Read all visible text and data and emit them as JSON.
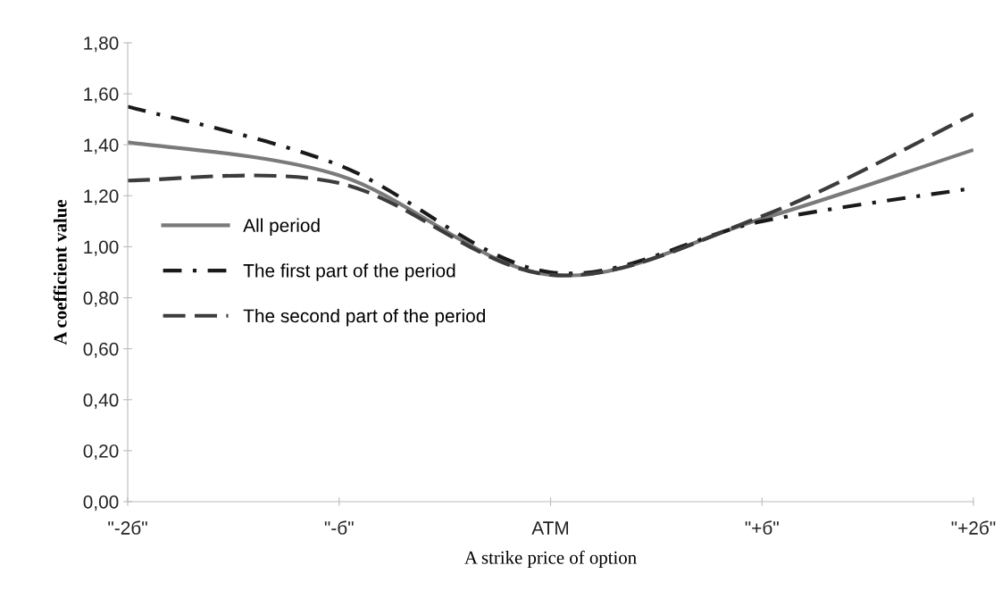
{
  "chart_data": {
    "type": "line",
    "xlabel": "A strike price of option",
    "ylabel": "A coefficient value",
    "categories": [
      "\"-2б\"",
      "\"-б\"",
      "ATM",
      "\"+б\"",
      "\"+2б\""
    ],
    "series": [
      {
        "name": "All period",
        "color": "#7a7a7c",
        "line_style": "solid",
        "values": [
          1.41,
          1.28,
          0.89,
          1.11,
          1.38
        ]
      },
      {
        "name": "The first part of the period",
        "color": "#1a1a1a",
        "line_style": "dashdot",
        "values": [
          1.55,
          1.32,
          0.9,
          1.1,
          1.23
        ]
      },
      {
        "name": "The second part of the period",
        "color": "#3c3c3c",
        "line_style": "dashed",
        "values": [
          1.26,
          1.25,
          0.89,
          1.12,
          1.52
        ]
      }
    ],
    "ylim": [
      0,
      1.8
    ],
    "yticks": [
      {
        "value": 0,
        "label": "0,00"
      },
      {
        "value": 0.2,
        "label": "0,20"
      },
      {
        "value": 0.4,
        "label": "0,40"
      },
      {
        "value": 0.6,
        "label": "0,60"
      },
      {
        "value": 0.8,
        "label": "0,80"
      },
      {
        "value": 1.0,
        "label": "1,00"
      },
      {
        "value": 1.2,
        "label": "1,20"
      },
      {
        "value": 1.4,
        "label": "1,40"
      },
      {
        "value": 1.6,
        "label": "1,60"
      },
      {
        "value": 1.8,
        "label": "1,80"
      }
    ],
    "legend": "center left",
    "grid": false,
    "marker": "none"
  }
}
